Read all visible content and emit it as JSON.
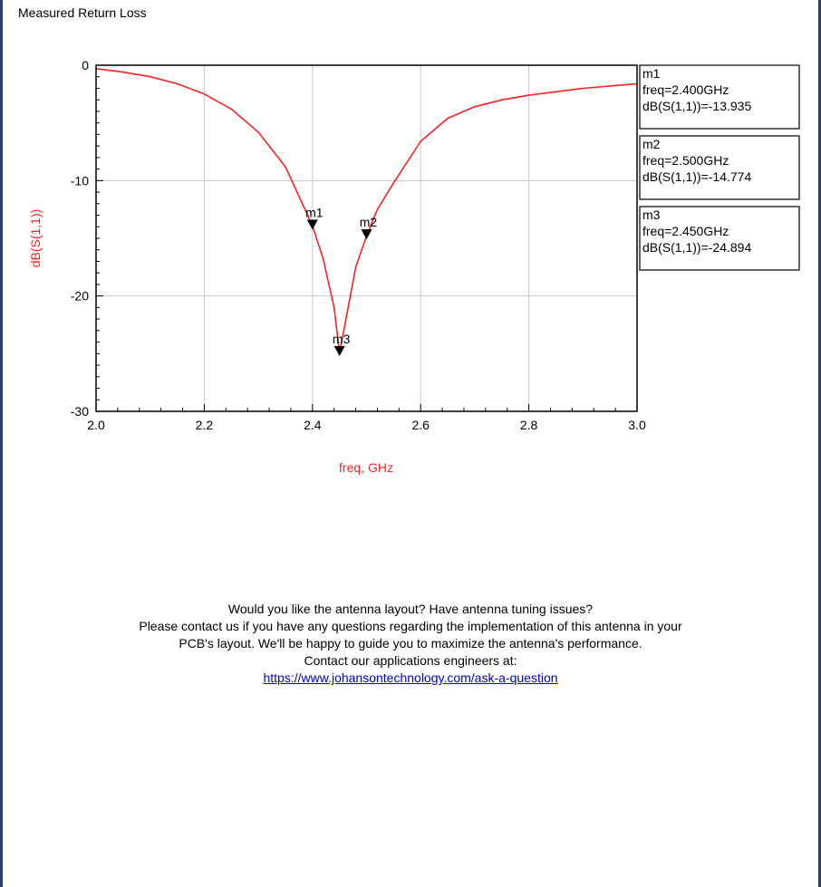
{
  "panel": {
    "title": "Measured Return Loss"
  },
  "chart_data": {
    "type": "line",
    "title": "",
    "xlabel": "freq, GHz",
    "ylabel": "dB(S(1,1))",
    "xlim": [
      2.0,
      3.0
    ],
    "ylim": [
      -30,
      0
    ],
    "xticks": [
      "2.0",
      "2.2",
      "2.4",
      "2.6",
      "2.8",
      "3.0"
    ],
    "yticks": [
      "0",
      "-10",
      "-20",
      "-30"
    ],
    "grid": true,
    "line_color": "#ff2020",
    "label_color": "#ff2020",
    "series": [
      {
        "x": [
          2.0,
          2.05,
          2.1,
          2.15,
          2.2,
          2.25,
          2.3,
          2.35,
          2.4,
          2.42,
          2.44,
          2.45,
          2.46,
          2.48,
          2.5,
          2.52,
          2.55,
          2.6,
          2.65,
          2.7,
          2.75,
          2.8,
          2.85,
          2.9,
          2.95,
          3.0
        ],
        "values": [
          -0.3,
          -0.6,
          -1.0,
          -1.6,
          -2.5,
          -3.8,
          -5.8,
          -8.8,
          -13.9,
          -16.8,
          -21.0,
          -24.9,
          -22.5,
          -17.5,
          -14.8,
          -12.5,
          -10.2,
          -6.6,
          -4.6,
          -3.6,
          -3.0,
          -2.6,
          -2.3,
          -2.0,
          -1.8,
          -1.6
        ]
      }
    ],
    "markers": [
      {
        "name": "m1",
        "freq": 2.4,
        "db": -13.935,
        "lines": [
          "m1",
          "freq=2.400GHz",
          "dB(S(1,1))=-13.935"
        ]
      },
      {
        "name": "m2",
        "freq": 2.5,
        "db": -14.774,
        "lines": [
          "m2",
          "freq=2.500GHz",
          "dB(S(1,1))=-14.774"
        ]
      },
      {
        "name": "m3",
        "freq": 2.45,
        "db": -24.894,
        "lines": [
          "m3",
          "freq=2.450GHz",
          "dB(S(1,1))=-24.894"
        ]
      }
    ]
  },
  "footer": {
    "line1": "Would you like the antenna layout? Have antenna tuning issues?",
    "line2": "Please  contact us if you have any questions regarding the implementation of this antenna in your",
    "line3": "PCB's layout.  We'll be happy to guide you to maximize the antenna's performance.",
    "line4": "Contact our applications engineers at:",
    "link": "https://www.johansontechnology.com/ask-a-question"
  }
}
